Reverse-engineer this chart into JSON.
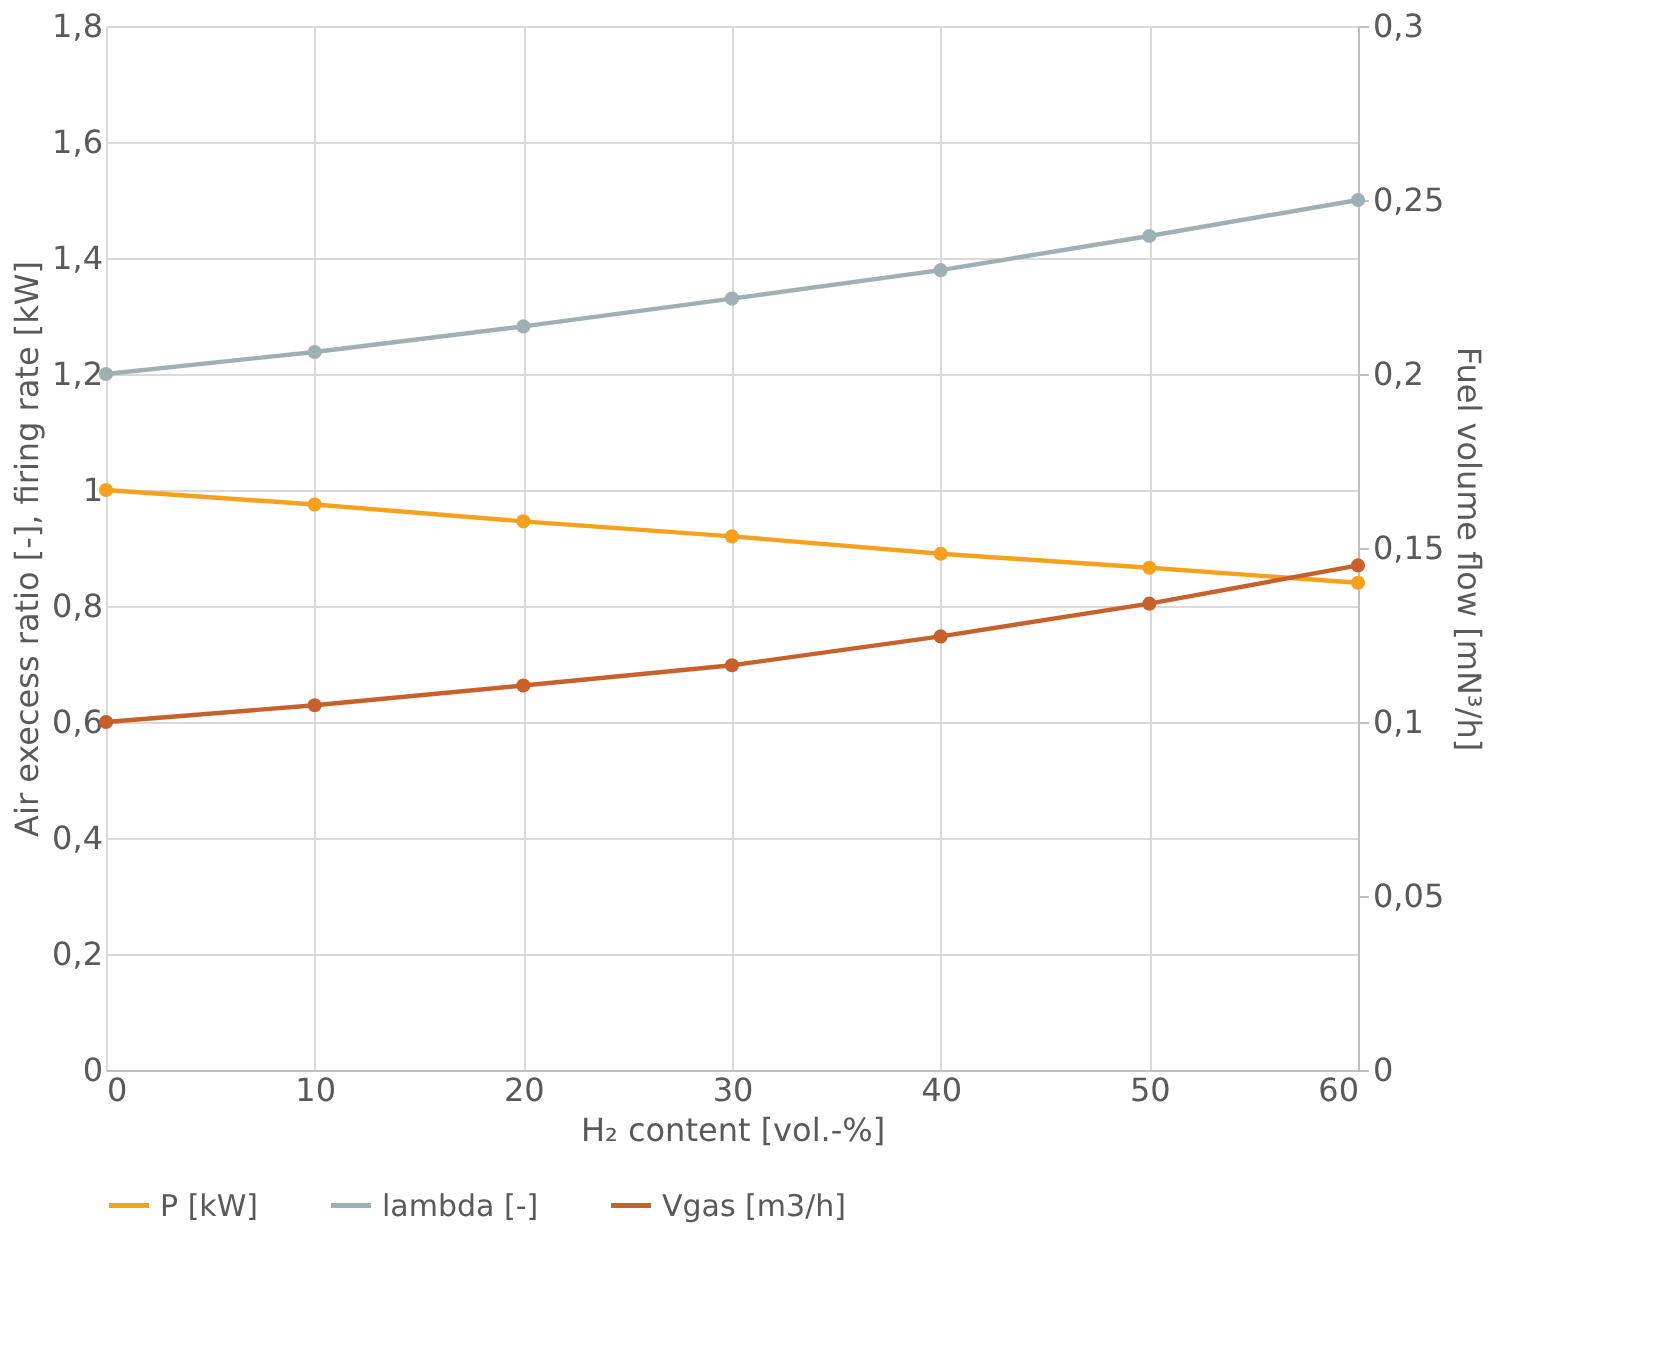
{
  "chart_data": {
    "type": "line",
    "xlabel": "H₂ content [vol.-%]",
    "ylabel": "Air execess ratio [-], firing rate [kW]",
    "y2label": "Fuel volume flow  [mN³/h]",
    "x": [
      0,
      10,
      20,
      30,
      40,
      50,
      60
    ],
    "series": [
      {
        "name": "P [kW]",
        "color": "#f5a11c",
        "values": [
          1.0,
          0.975,
          0.946,
          0.92,
          0.89,
          0.866,
          0.84
        ]
      },
      {
        "name": "lambda [-]",
        "color": "#9eb0b3",
        "values": [
          1.2,
          1.238,
          1.282,
          1.33,
          1.379,
          1.438,
          1.5
        ]
      },
      {
        "name": "Vgas [m3/h]",
        "color": "#c8602b",
        "axis": "y2",
        "values": [
          0.1,
          0.1048,
          0.1105,
          0.1163,
          0.1246,
          0.134,
          0.145
        ]
      }
    ],
    "xlim": [
      0,
      60
    ],
    "xticks": [
      0,
      10,
      20,
      30,
      40,
      50,
      60
    ],
    "ylim": [
      0,
      1.8
    ],
    "yticks": [
      0,
      {
        "value": 0.2,
        "label": "0,2"
      },
      {
        "value": 0.4,
        "label": "0,4"
      },
      {
        "value": 0.6,
        "label": "0,6"
      },
      {
        "value": 0.8,
        "label": "0,8"
      },
      1,
      {
        "value": 1.2,
        "label": "1,2"
      },
      {
        "value": 1.4,
        "label": "1,4"
      },
      {
        "value": 1.6,
        "label": "1,6"
      },
      {
        "value": 1.8,
        "label": "1,8"
      }
    ],
    "y2lim": [
      0,
      0.3
    ],
    "y2ticks": [
      0,
      {
        "value": 0.05,
        "label": "0,05"
      },
      {
        "value": 0.1,
        "label": "0,1"
      },
      {
        "value": 0.15,
        "label": "0,15"
      },
      {
        "value": 0.2,
        "label": "0,2"
      },
      {
        "value": 0.25,
        "label": "0,25"
      },
      {
        "value": 0.3,
        "label": "0,3"
      }
    ],
    "grid": true,
    "legend": "bottom",
    "marker": "circle",
    "line_style": "solid"
  }
}
